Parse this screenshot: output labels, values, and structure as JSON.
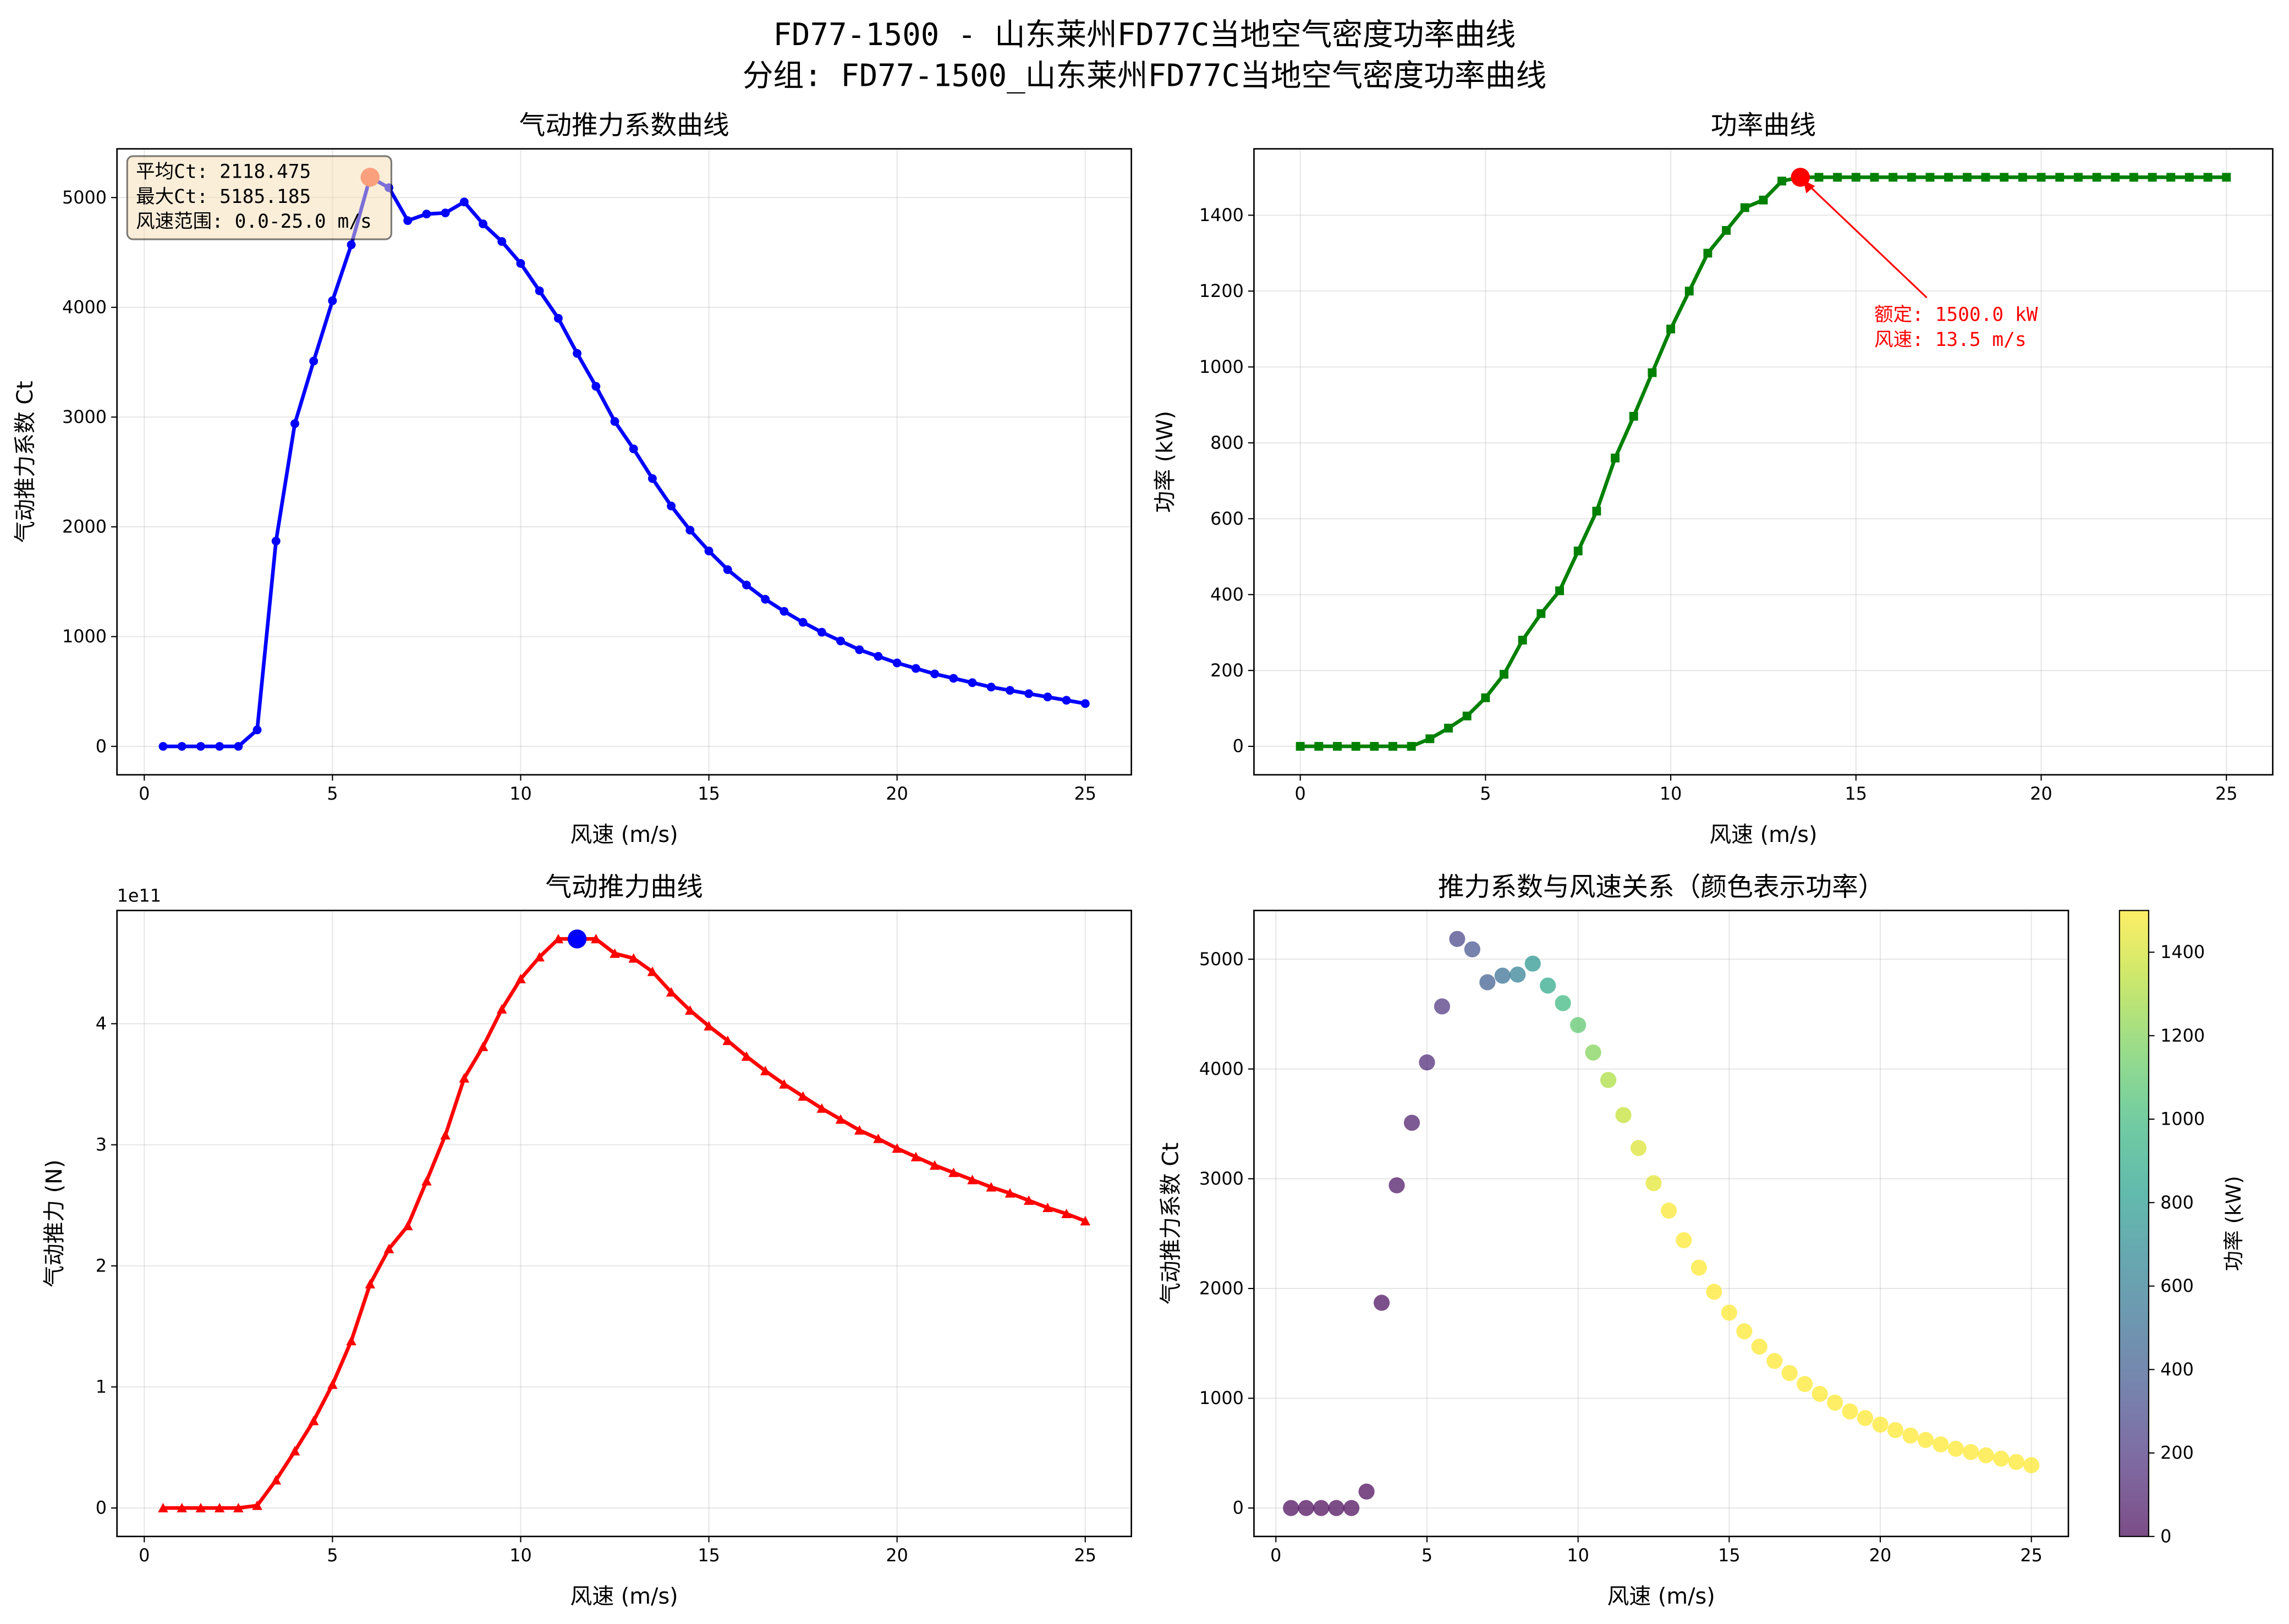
{
  "figure": {
    "title_line1": "FD77-1500 - 山东莱州FD77C当地空气密度功率曲线",
    "title_line2": "分组: FD77-1500_山东莱州FD77C当地空气密度功率曲线"
  },
  "chart_data": [
    {
      "type": "line",
      "title": "气动推力系数曲线",
      "xlabel": "风速 (m/s)",
      "ylabel": "气动推力系数 Ct",
      "xlim": [
        -0.725,
        26.225
      ],
      "ylim": [
        -259,
        5444
      ],
      "xticks": [
        0,
        5,
        10,
        15,
        20,
        25
      ],
      "yticks": [
        0,
        1000,
        2000,
        3000,
        4000,
        5000
      ],
      "grid": true,
      "color": "#0000ff",
      "marker": "circle",
      "x": [
        0.5,
        1,
        1.5,
        2,
        2.5,
        3,
        3.5,
        4,
        4.5,
        5,
        5.5,
        6,
        6.5,
        7,
        7.5,
        8,
        8.5,
        9,
        9.5,
        10,
        10.5,
        11,
        11.5,
        12,
        12.5,
        13,
        13.5,
        14,
        14.5,
        15,
        15.5,
        16,
        16.5,
        17,
        17.5,
        18,
        18.5,
        19,
        19.5,
        20,
        20.5,
        21,
        21.5,
        22,
        22.5,
        23,
        23.5,
        24,
        24.5,
        25
      ],
      "y": [
        0,
        0,
        0,
        0,
        0,
        150,
        1870,
        2940,
        3510,
        4060,
        4570,
        5185,
        5090,
        4790,
        4850,
        4860,
        4960,
        4760,
        4600,
        4400,
        4150,
        3900,
        3580,
        3280,
        2960,
        2710,
        2440,
        2190,
        1970,
        1780,
        1610,
        1470,
        1340,
        1230,
        1130,
        1040,
        960,
        880,
        820,
        760,
        710,
        660,
        620,
        580,
        540,
        510,
        480,
        450,
        420,
        390
      ],
      "highlight": {
        "x": 6,
        "y": 5185.185,
        "color": "#ff6347"
      },
      "info_box": {
        "lines": [
          "平均Ct: 2118.475",
          "最大Ct: 5185.185",
          "风速范围: 0.0-25.0 m/s"
        ],
        "facecolor": "#f5deb3"
      }
    },
    {
      "type": "line",
      "title": "功率曲线",
      "xlabel": "风速 (m/s)",
      "ylabel": "功率 (kW)",
      "xlim": [
        -1.25,
        26.25
      ],
      "ylim": [
        -75,
        1575
      ],
      "xticks": [
        0,
        5,
        10,
        15,
        20,
        25
      ],
      "yticks": [
        0,
        200,
        400,
        600,
        800,
        1000,
        1200,
        1400
      ],
      "grid": true,
      "color": "#008000",
      "marker": "square",
      "x": [
        0,
        0.5,
        1,
        1.5,
        2,
        2.5,
        3,
        3.5,
        4,
        4.5,
        5,
        5.5,
        6,
        6.5,
        7,
        7.5,
        8,
        8.5,
        9,
        9.5,
        10,
        10.5,
        11,
        11.5,
        12,
        12.5,
        13,
        13.5,
        14,
        14.5,
        15,
        15.5,
        16,
        16.5,
        17,
        17.5,
        18,
        18.5,
        19,
        19.5,
        20,
        20.5,
        21,
        21.5,
        22,
        22.5,
        23,
        23.5,
        24,
        24.5,
        25
      ],
      "y": [
        0,
        0,
        0,
        0,
        0,
        0,
        0,
        20,
        48,
        80,
        128,
        190,
        280,
        350,
        410,
        515,
        620,
        760,
        870,
        985,
        1100,
        1200,
        1300,
        1360,
        1420,
        1440,
        1490,
        1500,
        1500,
        1500,
        1500,
        1500,
        1500,
        1500,
        1500,
        1500,
        1500,
        1500,
        1500,
        1500,
        1500,
        1500,
        1500,
        1500,
        1500,
        1500,
        1500,
        1500,
        1500,
        1500,
        1500
      ],
      "highlight": {
        "x": 13.5,
        "y": 1500,
        "color": "#ff0000"
      },
      "annotation": {
        "lines": [
          "额定: 1500.0 kW",
          "风速: 13.5 m/s"
        ],
        "color": "#ff0000"
      }
    },
    {
      "type": "line",
      "title": "气动推力曲线",
      "xlabel": "风速 (m/s)",
      "ylabel": "气动推力 (N)",
      "y_offset_label": "1e11",
      "xlim": [
        -0.725,
        26.225
      ],
      "ylim": [
        -0.235,
        4.935
      ],
      "xticks": [
        0,
        5,
        10,
        15,
        20,
        25
      ],
      "yticks": [
        0,
        1,
        2,
        3,
        4
      ],
      "grid": true,
      "color": "#ff0000",
      "marker": "triangle",
      "x": [
        0.5,
        1,
        1.5,
        2,
        2.5,
        3,
        3.5,
        4,
        4.5,
        5,
        5.5,
        6,
        6.5,
        7,
        7.5,
        8,
        8.5,
        9,
        9.5,
        10,
        10.5,
        11,
        11.5,
        12,
        12.5,
        13,
        13.5,
        14,
        14.5,
        15,
        15.5,
        16,
        16.5,
        17,
        17.5,
        18,
        18.5,
        19,
        19.5,
        20,
        20.5,
        21,
        21.5,
        22,
        22.5,
        23,
        23.5,
        24,
        24.5,
        25
      ],
      "y": [
        0,
        0,
        0,
        0,
        0,
        0.02,
        0.23,
        0.47,
        0.72,
        1.02,
        1.38,
        1.85,
        2.14,
        2.33,
        2.7,
        3.08,
        3.55,
        3.81,
        4.12,
        4.37,
        4.55,
        4.7,
        4.7,
        4.7,
        4.58,
        4.54,
        4.43,
        4.26,
        4.11,
        3.98,
        3.86,
        3.73,
        3.61,
        3.5,
        3.4,
        3.3,
        3.21,
        3.12,
        3.05,
        2.97,
        2.9,
        2.83,
        2.77,
        2.71,
        2.65,
        2.6,
        2.54,
        2.48,
        2.43,
        2.37
      ],
      "highlight": {
        "x": 11.5,
        "y": 4.7,
        "color": "#0000ff"
      }
    },
    {
      "type": "scatter",
      "title": "推力系数与风速关系（颜色表示功率）",
      "xlabel": "风速 (m/s)",
      "ylabel": "气动推力系数 Ct",
      "xlim": [
        -0.725,
        26.225
      ],
      "ylim": [
        -259,
        5444
      ],
      "xticks": [
        0,
        5,
        10,
        15,
        20,
        25
      ],
      "yticks": [
        0,
        1000,
        2000,
        3000,
        4000,
        5000
      ],
      "grid": true,
      "colormap": "viridis",
      "colorbar": {
        "label": "功率 (kW)",
        "range": [
          0,
          1500
        ],
        "ticks": [
          0,
          200,
          400,
          600,
          800,
          1000,
          1200,
          1400
        ]
      },
      "x_source": "same as Ct curve",
      "y_source": "same as Ct curve",
      "color_values": "power at each wind speed"
    }
  ]
}
